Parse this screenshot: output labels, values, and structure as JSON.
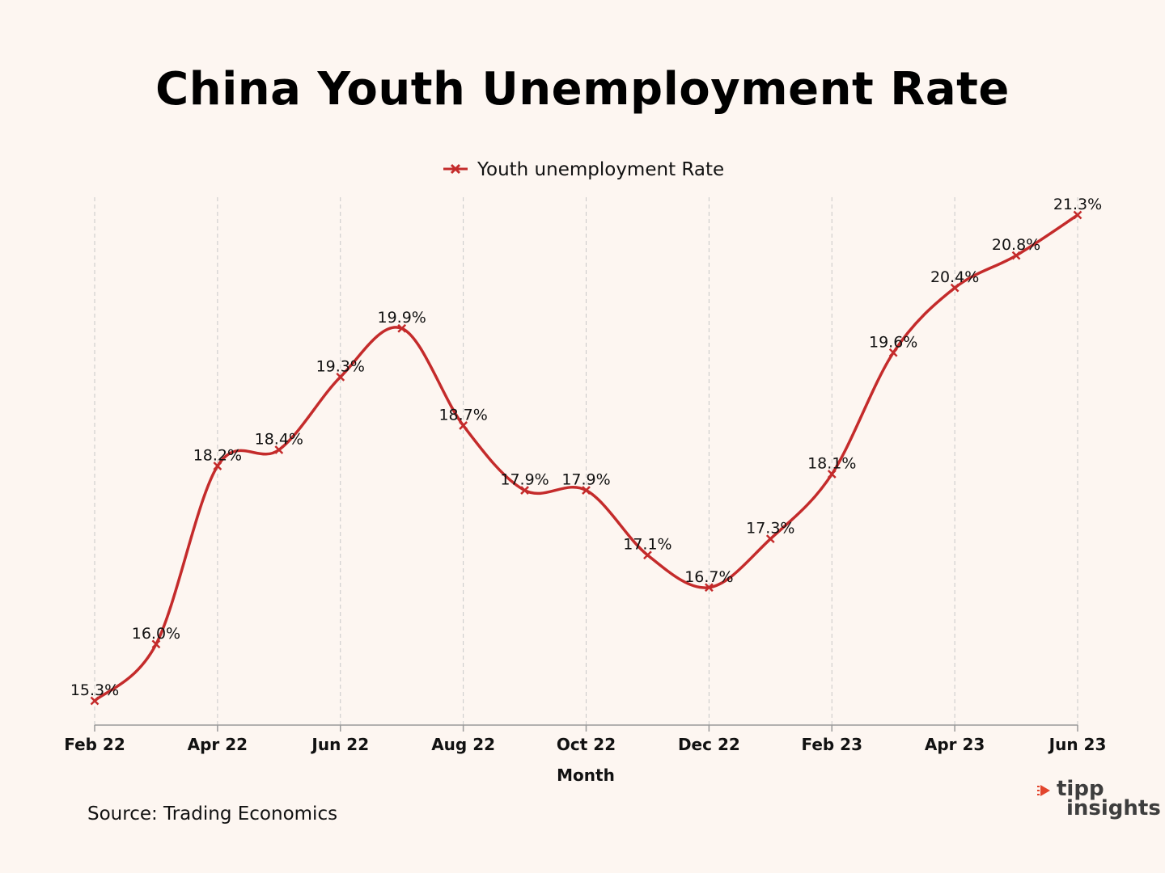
{
  "title": "China Youth Unemployment Rate",
  "source": "Source:  Trading Economics",
  "logo": {
    "line1": "tipp",
    "line2": "insights",
    "accent_color": "#e2452d",
    "text_color": "#3e3e3e"
  },
  "colors": {
    "background": "#fdf6f1",
    "series": "#c42b2b",
    "grid": "#c8c8c8",
    "axis": "#999999"
  },
  "chart_data": {
    "type": "line",
    "title": "China Youth Unemployment Rate",
    "xlabel": "Month",
    "ylabel": "",
    "legend": "top-center",
    "grid": "vertical dashed",
    "smooth": true,
    "marker": "x",
    "x": [
      "Feb 22",
      "Mar 22",
      "Apr 22",
      "May 22",
      "Jun 22",
      "Jul 22",
      "Aug 22",
      "Sep 22",
      "Oct 22",
      "Nov 22",
      "Dec 22",
      "Jan 23",
      "Feb 23",
      "Mar 23",
      "Apr 23",
      "May 23",
      "Jun 23"
    ],
    "tick_labels": [
      "Feb 22",
      "Apr 22",
      "Jun 22",
      "Aug 22",
      "Oct 22",
      "Dec 22",
      "Feb 23",
      "Apr 23",
      "Jun 23"
    ],
    "series": [
      {
        "name": "Youth unemployment Rate",
        "values": [
          15.3,
          16.0,
          18.2,
          18.4,
          19.3,
          19.9,
          18.7,
          17.9,
          17.9,
          17.1,
          16.7,
          17.3,
          18.1,
          19.6,
          20.4,
          20.8,
          21.3
        ],
        "labels": [
          "15.3%",
          "16.0%",
          "18.2%",
          "18.4%",
          "19.3%",
          "19.9%",
          "18.7%",
          "17.9%",
          "17.9%",
          "17.1%",
          "16.7%",
          "17.3%",
          "18.1%",
          "19.6%",
          "20.4%",
          "20.8%",
          "21.3%"
        ]
      }
    ]
  }
}
